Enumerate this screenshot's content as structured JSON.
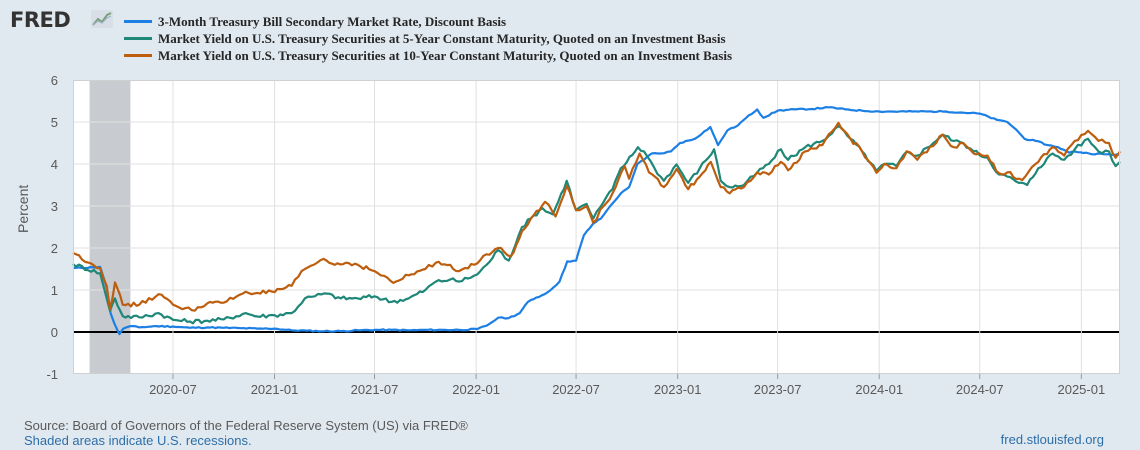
{
  "header": {
    "logo_text": "FRED",
    "logo_icon": "trend-line-icon"
  },
  "chart_data": {
    "type": "line",
    "title": "",
    "xlabel": "",
    "ylabel": "Percent",
    "ylim": [
      -1,
      6
    ],
    "xlim": [
      "2020-01-02",
      "2025-03-12"
    ],
    "yticks": [
      "-1",
      "0",
      "1",
      "2",
      "3",
      "4",
      "5",
      "6"
    ],
    "xticks": [
      "2020-07",
      "2021-01",
      "2021-07",
      "2022-01",
      "2022-07",
      "2023-01",
      "2023-07",
      "2024-01",
      "2024-07",
      "2025-01"
    ],
    "grid": true,
    "legend_position": "top",
    "recession_shading": {
      "start": "2020-02",
      "end": "2020-04"
    },
    "series": [
      {
        "name": "3-Month Treasury Bill Secondary Market Rate, Discount Basis",
        "color": "#1c7fe4",
        "points": [
          [
            "2020-01-02",
            1.52
          ],
          [
            "2020-02-20",
            1.55
          ],
          [
            "2020-03-03",
            1.05
          ],
          [
            "2020-03-10",
            0.45
          ],
          [
            "2020-03-17",
            0.2
          ],
          [
            "2020-03-26",
            -0.05
          ],
          [
            "2020-04-02",
            0.08
          ],
          [
            "2020-04-15",
            0.14
          ],
          [
            "2020-05-01",
            0.11
          ],
          [
            "2020-06-01",
            0.14
          ],
          [
            "2020-07-01",
            0.13
          ],
          [
            "2020-08-01",
            0.1
          ],
          [
            "2020-09-01",
            0.11
          ],
          [
            "2020-10-01",
            0.1
          ],
          [
            "2020-11-01",
            0.09
          ],
          [
            "2020-12-01",
            0.08
          ],
          [
            "2021-01-01",
            0.08
          ],
          [
            "2021-02-01",
            0.04
          ],
          [
            "2021-03-01",
            0.03
          ],
          [
            "2021-04-01",
            0.02
          ],
          [
            "2021-05-01",
            0.02
          ],
          [
            "2021-06-01",
            0.04
          ],
          [
            "2021-07-01",
            0.05
          ],
          [
            "2021-08-01",
            0.05
          ],
          [
            "2021-09-01",
            0.04
          ],
          [
            "2021-10-01",
            0.05
          ],
          [
            "2021-11-01",
            0.05
          ],
          [
            "2021-12-01",
            0.05
          ],
          [
            "2022-01-03",
            0.07
          ],
          [
            "2022-01-20",
            0.15
          ],
          [
            "2022-02-10",
            0.34
          ],
          [
            "2022-03-01",
            0.33
          ],
          [
            "2022-03-21",
            0.45
          ],
          [
            "2022-04-05",
            0.72
          ],
          [
            "2022-04-20",
            0.82
          ],
          [
            "2022-05-05",
            0.9
          ],
          [
            "2022-05-20",
            1.05
          ],
          [
            "2022-06-01",
            1.2
          ],
          [
            "2022-06-15",
            1.68
          ],
          [
            "2022-07-01",
            1.7
          ],
          [
            "2022-07-15",
            2.3
          ],
          [
            "2022-08-01",
            2.58
          ],
          [
            "2022-08-15",
            2.7
          ],
          [
            "2022-09-01",
            3.0
          ],
          [
            "2022-09-20",
            3.3
          ],
          [
            "2022-10-05",
            3.45
          ],
          [
            "2022-10-20",
            4.0
          ],
          [
            "2022-11-01",
            4.1
          ],
          [
            "2022-11-15",
            4.25
          ],
          [
            "2022-12-01",
            4.25
          ],
          [
            "2022-12-20",
            4.3
          ],
          [
            "2023-01-05",
            4.5
          ],
          [
            "2023-02-01",
            4.6
          ],
          [
            "2023-03-01",
            4.88
          ],
          [
            "2023-03-15",
            4.45
          ],
          [
            "2023-04-01",
            4.8
          ],
          [
            "2023-04-20",
            4.92
          ],
          [
            "2023-05-05",
            5.1
          ],
          [
            "2023-05-25",
            5.3
          ],
          [
            "2023-06-05",
            5.1
          ],
          [
            "2023-07-01",
            5.27
          ],
          [
            "2023-08-01",
            5.3
          ],
          [
            "2023-09-01",
            5.31
          ],
          [
            "2023-10-01",
            5.35
          ],
          [
            "2023-11-01",
            5.3
          ],
          [
            "2023-12-01",
            5.27
          ],
          [
            "2024-01-01",
            5.25
          ],
          [
            "2024-03-01",
            5.25
          ],
          [
            "2024-05-01",
            5.25
          ],
          [
            "2024-07-01",
            5.2
          ],
          [
            "2024-08-01",
            5.05
          ],
          [
            "2024-08-20",
            5.0
          ],
          [
            "2024-09-05",
            4.82
          ],
          [
            "2024-09-20",
            4.6
          ],
          [
            "2024-10-10",
            4.55
          ],
          [
            "2024-11-01",
            4.45
          ],
          [
            "2024-11-20",
            4.4
          ],
          [
            "2024-12-10",
            4.27
          ],
          [
            "2024-12-20",
            4.3
          ],
          [
            "2025-01-15",
            4.25
          ],
          [
            "2025-02-15",
            4.23
          ],
          [
            "2025-03-12",
            4.22
          ]
        ]
      },
      {
        "name": "Market Yield on U.S. Treasury Securities at 5-Year Constant Maturity, Quoted on an Investment Basis",
        "color": "#1e8778",
        "points": [
          [
            "2020-01-02",
            1.62
          ],
          [
            "2020-02-20",
            1.4
          ],
          [
            "2020-03-03",
            0.8
          ],
          [
            "2020-03-09",
            0.5
          ],
          [
            "2020-03-18",
            0.8
          ],
          [
            "2020-04-01",
            0.38
          ],
          [
            "2020-05-01",
            0.35
          ],
          [
            "2020-06-05",
            0.45
          ],
          [
            "2020-07-01",
            0.29
          ],
          [
            "2020-08-01",
            0.25
          ],
          [
            "2020-09-01",
            0.27
          ],
          [
            "2020-10-01",
            0.3
          ],
          [
            "2020-11-10",
            0.45
          ],
          [
            "2020-12-01",
            0.37
          ],
          [
            "2021-01-01",
            0.4
          ],
          [
            "2021-02-01",
            0.45
          ],
          [
            "2021-02-25",
            0.8
          ],
          [
            "2021-03-15",
            0.85
          ],
          [
            "2021-04-01",
            0.92
          ],
          [
            "2021-05-01",
            0.8
          ],
          [
            "2021-06-01",
            0.8
          ],
          [
            "2021-07-01",
            0.85
          ],
          [
            "2021-08-01",
            0.72
          ],
          [
            "2021-09-01",
            0.8
          ],
          [
            "2021-10-01",
            1.0
          ],
          [
            "2021-10-20",
            1.2
          ],
          [
            "2021-11-15",
            1.25
          ],
          [
            "2021-12-01",
            1.2
          ],
          [
            "2022-01-03",
            1.37
          ],
          [
            "2022-01-20",
            1.6
          ],
          [
            "2022-02-10",
            1.95
          ],
          [
            "2022-03-01",
            1.7
          ],
          [
            "2022-03-25",
            2.5
          ],
          [
            "2022-04-10",
            2.7
          ],
          [
            "2022-05-01",
            2.95
          ],
          [
            "2022-05-20",
            2.8
          ],
          [
            "2022-06-14",
            3.6
          ],
          [
            "2022-07-01",
            2.9
          ],
          [
            "2022-07-20",
            3.05
          ],
          [
            "2022-08-01",
            2.7
          ],
          [
            "2022-08-20",
            3.1
          ],
          [
            "2022-09-05",
            3.4
          ],
          [
            "2022-09-20",
            3.9
          ],
          [
            "2022-10-01",
            4.05
          ],
          [
            "2022-10-21",
            4.4
          ],
          [
            "2022-11-01",
            4.3
          ],
          [
            "2022-11-20",
            3.9
          ],
          [
            "2022-12-07",
            3.6
          ],
          [
            "2022-12-30",
            3.99
          ],
          [
            "2023-01-20",
            3.55
          ],
          [
            "2023-02-10",
            3.9
          ],
          [
            "2023-03-08",
            4.35
          ],
          [
            "2023-03-20",
            3.6
          ],
          [
            "2023-04-05",
            3.45
          ],
          [
            "2023-05-01",
            3.5
          ],
          [
            "2023-05-25",
            3.8
          ],
          [
            "2023-06-15",
            4.0
          ],
          [
            "2023-07-07",
            4.35
          ],
          [
            "2023-07-20",
            4.1
          ],
          [
            "2023-08-20",
            4.4
          ],
          [
            "2023-09-20",
            4.55
          ],
          [
            "2023-10-19",
            4.9
          ],
          [
            "2023-11-10",
            4.6
          ],
          [
            "2023-12-01",
            4.3
          ],
          [
            "2023-12-27",
            3.83
          ],
          [
            "2024-01-10",
            4.0
          ],
          [
            "2024-02-01",
            3.95
          ],
          [
            "2024-02-20",
            4.3
          ],
          [
            "2024-03-10",
            4.2
          ],
          [
            "2024-04-25",
            4.7
          ],
          [
            "2024-05-15",
            4.55
          ],
          [
            "2024-06-01",
            4.5
          ],
          [
            "2024-06-20",
            4.3
          ],
          [
            "2024-07-15",
            4.15
          ],
          [
            "2024-08-05",
            3.75
          ],
          [
            "2024-08-20",
            3.7
          ],
          [
            "2024-09-10",
            3.55
          ],
          [
            "2024-09-25",
            3.5
          ],
          [
            "2024-10-15",
            3.9
          ],
          [
            "2024-11-10",
            4.25
          ],
          [
            "2024-12-01",
            4.1
          ],
          [
            "2024-12-20",
            4.35
          ],
          [
            "2025-01-13",
            4.6
          ],
          [
            "2025-02-01",
            4.3
          ],
          [
            "2025-02-20",
            4.3
          ],
          [
            "2025-03-04",
            3.95
          ],
          [
            "2025-03-12",
            4.05
          ]
        ]
      },
      {
        "name": "Market Yield on U.S. Treasury Securities at 10-Year Constant Maturity, Quoted on an Investment Basis",
        "color": "#bd5e0e",
        "points": [
          [
            "2020-01-02",
            1.88
          ],
          [
            "2020-02-20",
            1.52
          ],
          [
            "2020-03-03",
            1.1
          ],
          [
            "2020-03-09",
            0.54
          ],
          [
            "2020-03-18",
            1.18
          ],
          [
            "2020-04-01",
            0.65
          ],
          [
            "2020-05-01",
            0.65
          ],
          [
            "2020-06-05",
            0.9
          ],
          [
            "2020-07-01",
            0.65
          ],
          [
            "2020-08-04",
            0.52
          ],
          [
            "2020-09-01",
            0.68
          ],
          [
            "2020-10-01",
            0.7
          ],
          [
            "2020-11-10",
            0.96
          ],
          [
            "2020-12-01",
            0.93
          ],
          [
            "2021-01-01",
            0.95
          ],
          [
            "2021-02-01",
            1.1
          ],
          [
            "2021-02-25",
            1.5
          ],
          [
            "2021-03-31",
            1.74
          ],
          [
            "2021-04-20",
            1.6
          ],
          [
            "2021-05-10",
            1.65
          ],
          [
            "2021-06-01",
            1.6
          ],
          [
            "2021-07-01",
            1.45
          ],
          [
            "2021-08-04",
            1.17
          ],
          [
            "2021-09-01",
            1.35
          ],
          [
            "2021-10-01",
            1.5
          ],
          [
            "2021-10-20",
            1.65
          ],
          [
            "2021-11-15",
            1.6
          ],
          [
            "2021-12-01",
            1.45
          ],
          [
            "2022-01-03",
            1.63
          ],
          [
            "2022-01-20",
            1.85
          ],
          [
            "2022-02-15",
            2.0
          ],
          [
            "2022-03-05",
            1.8
          ],
          [
            "2022-03-25",
            2.4
          ],
          [
            "2022-04-10",
            2.7
          ],
          [
            "2022-05-06",
            3.1
          ],
          [
            "2022-05-25",
            2.75
          ],
          [
            "2022-06-14",
            3.48
          ],
          [
            "2022-07-01",
            2.9
          ],
          [
            "2022-07-20",
            3.0
          ],
          [
            "2022-08-01",
            2.6
          ],
          [
            "2022-08-20",
            3.0
          ],
          [
            "2022-09-05",
            3.3
          ],
          [
            "2022-09-27",
            3.95
          ],
          [
            "2022-10-05",
            3.65
          ],
          [
            "2022-10-24",
            4.25
          ],
          [
            "2022-11-10",
            3.8
          ],
          [
            "2022-12-07",
            3.45
          ],
          [
            "2022-12-30",
            3.88
          ],
          [
            "2023-01-20",
            3.4
          ],
          [
            "2023-02-10",
            3.7
          ],
          [
            "2023-03-02",
            4.05
          ],
          [
            "2023-03-20",
            3.45
          ],
          [
            "2023-04-05",
            3.3
          ],
          [
            "2023-05-01",
            3.45
          ],
          [
            "2023-05-25",
            3.8
          ],
          [
            "2023-06-15",
            3.75
          ],
          [
            "2023-07-07",
            4.05
          ],
          [
            "2023-07-20",
            3.85
          ],
          [
            "2023-08-20",
            4.3
          ],
          [
            "2023-09-20",
            4.45
          ],
          [
            "2023-10-19",
            4.98
          ],
          [
            "2023-11-10",
            4.6
          ],
          [
            "2023-12-01",
            4.3
          ],
          [
            "2023-12-27",
            3.79
          ],
          [
            "2024-01-10",
            4.0
          ],
          [
            "2024-02-01",
            3.9
          ],
          [
            "2024-02-20",
            4.3
          ],
          [
            "2024-03-10",
            4.1
          ],
          [
            "2024-04-25",
            4.7
          ],
          [
            "2024-05-15",
            4.4
          ],
          [
            "2024-06-01",
            4.5
          ],
          [
            "2024-06-20",
            4.25
          ],
          [
            "2024-07-15",
            4.2
          ],
          [
            "2024-08-05",
            3.78
          ],
          [
            "2024-08-20",
            3.8
          ],
          [
            "2024-09-16",
            3.62
          ],
          [
            "2024-10-15",
            4.05
          ],
          [
            "2024-11-10",
            4.4
          ],
          [
            "2024-12-01",
            4.2
          ],
          [
            "2024-12-20",
            4.55
          ],
          [
            "2025-01-13",
            4.79
          ],
          [
            "2025-02-01",
            4.55
          ],
          [
            "2025-02-20",
            4.5
          ],
          [
            "2025-03-04",
            4.15
          ],
          [
            "2025-03-12",
            4.3
          ]
        ]
      }
    ]
  },
  "footer": {
    "source": "Source: Board of Governors of the Federal Reserve System (US) via FRED®",
    "note": "Shaded areas indicate U.S. recessions.",
    "url": "fred.stlouisfed.org"
  }
}
